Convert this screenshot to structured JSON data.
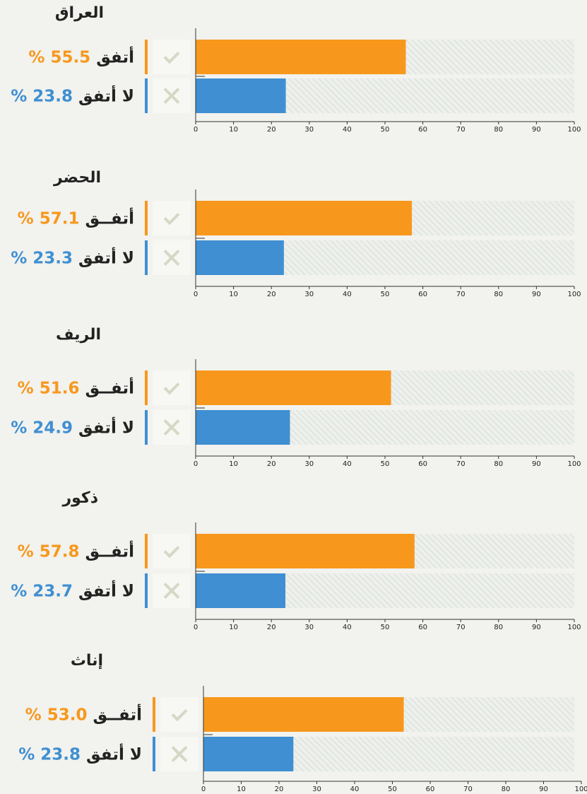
{
  "chart_data": [
    {
      "type": "bar",
      "title": "العراق",
      "categories": [
        "أتفق",
        "لا أتفق"
      ],
      "values": [
        55.5,
        23.8
      ],
      "value_labels": [
        "55.5 %",
        "23.8 %"
      ],
      "colors": [
        "#f7981d",
        "#3f8fd2"
      ],
      "xlim": [
        0,
        100
      ],
      "xticks": [
        0,
        10,
        20,
        30,
        40,
        50,
        60,
        70,
        80,
        90,
        100
      ]
    },
    {
      "type": "bar",
      "title": "الحضر",
      "categories": [
        "أتفــق",
        "لا أتفق"
      ],
      "values": [
        57.1,
        23.3
      ],
      "value_labels": [
        "57.1 %",
        "23.3 %"
      ],
      "colors": [
        "#f7981d",
        "#3f8fd2"
      ],
      "xlim": [
        0,
        100
      ],
      "xticks": [
        0,
        10,
        20,
        30,
        40,
        50,
        60,
        70,
        80,
        90,
        100
      ]
    },
    {
      "type": "bar",
      "title": "الريف",
      "categories": [
        "أتفــق",
        "لا أتفق"
      ],
      "values": [
        51.6,
        24.9
      ],
      "value_labels": [
        "51.6 %",
        "24.9 %"
      ],
      "colors": [
        "#f7981d",
        "#3f8fd2"
      ],
      "xlim": [
        0,
        100
      ],
      "xticks": [
        0,
        10,
        20,
        30,
        40,
        50,
        60,
        70,
        80,
        90,
        100
      ]
    },
    {
      "type": "bar",
      "title": "ذكور",
      "categories": [
        "أتفــق",
        "لا أتفق"
      ],
      "values": [
        57.8,
        23.7
      ],
      "value_labels": [
        "57.8 %",
        "23.7 %"
      ],
      "colors": [
        "#f7981d",
        "#3f8fd2"
      ],
      "xlim": [
        0,
        100
      ],
      "xticks": [
        0,
        10,
        20,
        30,
        40,
        50,
        60,
        70,
        80,
        90,
        100
      ]
    },
    {
      "type": "bar",
      "title": "إناث",
      "categories": [
        "أتفــق",
        "لا أتفق"
      ],
      "values": [
        53.0,
        23.8
      ],
      "value_labels": [
        "53.0 %",
        "23.8 %"
      ],
      "colors": [
        "#f7981d",
        "#3f8fd2"
      ],
      "xlim": [
        0,
        100
      ],
      "xticks": [
        0,
        10,
        20,
        30,
        40,
        50,
        60,
        70,
        80,
        90,
        100
      ]
    }
  ]
}
